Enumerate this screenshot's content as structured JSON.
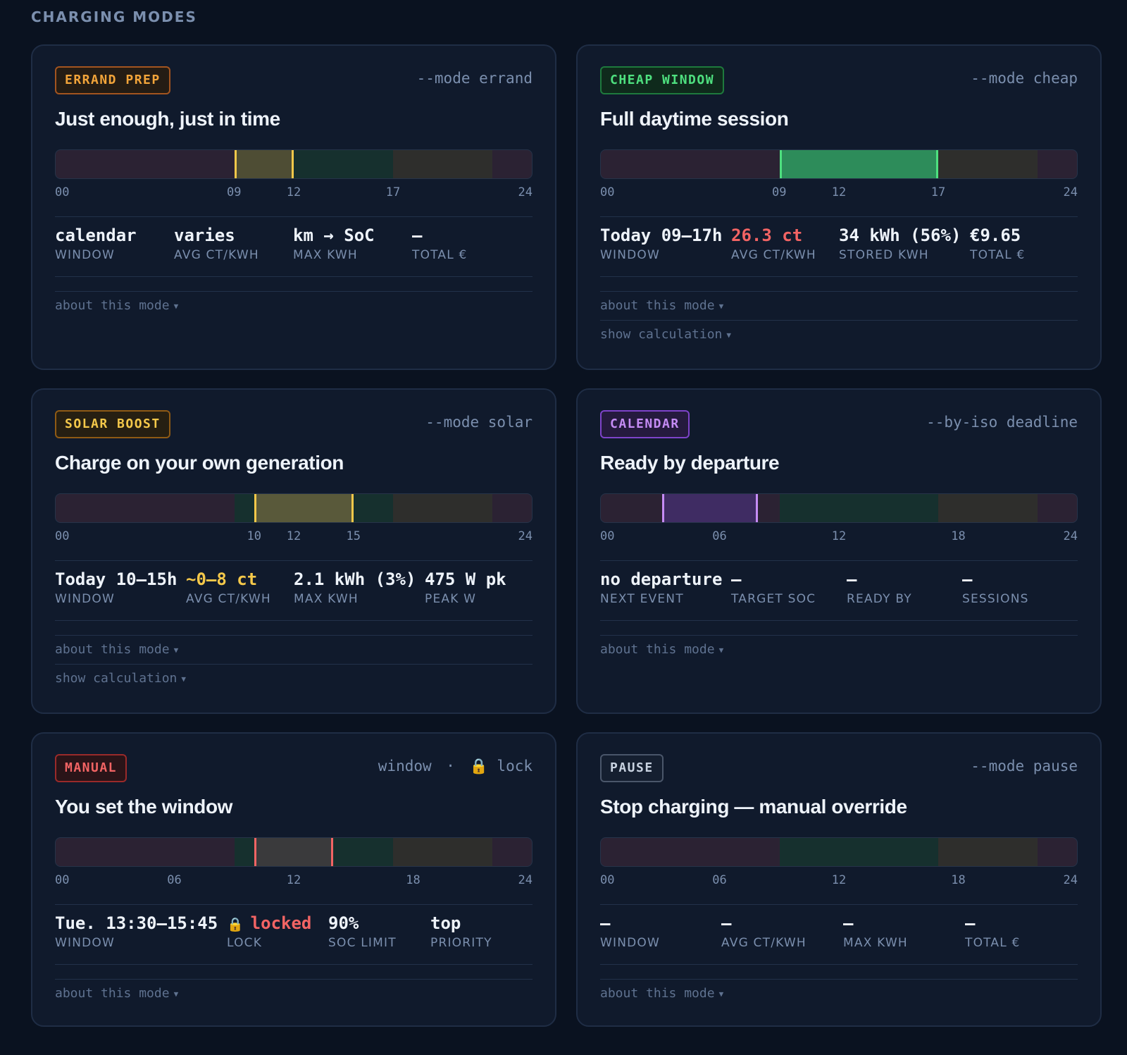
{
  "section_title": "CHARGING MODES",
  "cards": [
    {
      "tag": "ERRAND PREP",
      "cli": "--mode errand",
      "title": "Just enough, just in time",
      "ticks": [
        "00",
        "09",
        "12",
        "17",
        "24"
      ],
      "stats": [
        {
          "value": "calendar",
          "label": "WINDOW"
        },
        {
          "value": "varies",
          "label": "AVG CT/KWH"
        },
        {
          "value": "km → SoC",
          "label": "MAX KWH"
        },
        {
          "value": "—",
          "label": "TOTAL €"
        }
      ],
      "links": [
        "about this mode"
      ]
    },
    {
      "tag": "CHEAP WINDOW",
      "cli": "--mode cheap",
      "title": "Full daytime session",
      "ticks": [
        "00",
        "09",
        "12",
        "17",
        "24"
      ],
      "stats": [
        {
          "value": "Today 09–17h",
          "label": "WINDOW"
        },
        {
          "value": "26.3 ct",
          "label": "AVG CT/KWH"
        },
        {
          "value": "34 kWh (56%)",
          "label": "STORED KWH"
        },
        {
          "value": "€9.65",
          "label": "TOTAL €"
        }
      ],
      "links": [
        "about this mode",
        "show calculation"
      ]
    },
    {
      "tag": "SOLAR BOOST",
      "cli": "--mode solar",
      "title": "Charge on your own generation",
      "ticks": [
        "00",
        "10",
        "12",
        "15",
        "24"
      ],
      "stats": [
        {
          "value": "Today 10–15h",
          "label": "WINDOW"
        },
        {
          "value": "~0–8 ct",
          "label": "AVG CT/KWH"
        },
        {
          "value": "2.1 kWh (3%)",
          "label": "MAX KWH"
        },
        {
          "value": "475 W pk",
          "label": "PEAK W"
        }
      ],
      "links": [
        "about this mode",
        "show calculation"
      ]
    },
    {
      "tag": "CALENDAR",
      "cli": "--by-iso deadline",
      "title": "Ready by departure",
      "ticks": [
        "00",
        "06",
        "12",
        "18",
        "24"
      ],
      "stats": [
        {
          "value": "no departure",
          "label": "NEXT EVENT"
        },
        {
          "value": "—",
          "label": "TARGET SOC"
        },
        {
          "value": "—",
          "label": "READY BY"
        },
        {
          "value": "—",
          "label": "SESSIONS"
        }
      ],
      "links": [
        "about this mode"
      ]
    },
    {
      "tag": "MANUAL",
      "cli_window": "window",
      "cli_dot": "·",
      "cli_lock": "lock",
      "title": "You set the window",
      "ticks": [
        "00",
        "06",
        "12",
        "18",
        "24"
      ],
      "stats": [
        {
          "value": "Tue. 13:30–15:45",
          "label": "WINDOW"
        },
        {
          "value": "locked",
          "label": "LOCK"
        },
        {
          "value": "90%",
          "label": "SOC LIMIT"
        },
        {
          "value": "top",
          "label": "PRIORITY"
        }
      ],
      "links": [
        "about this mode"
      ]
    },
    {
      "tag": "PAUSE",
      "cli": "--mode pause",
      "title": "Stop charging — manual override",
      "ticks": [
        "00",
        "06",
        "12",
        "18",
        "24"
      ],
      "stats": [
        {
          "value": "—",
          "label": "WINDOW"
        },
        {
          "value": "—",
          "label": "AVG CT/KWH"
        },
        {
          "value": "—",
          "label": "MAX KWH"
        },
        {
          "value": "—",
          "label": "TOTAL €"
        }
      ],
      "links": [
        "about this mode"
      ]
    }
  ],
  "colors": {
    "background": "#0a1220",
    "card": "#101a2c",
    "errand": "#f2a43a",
    "cheap": "#4ee07f",
    "solar": "#f4c84a",
    "calendar": "#c58cf5",
    "manual": "#f26464",
    "pause": "#c8d2e0"
  },
  "icons": {
    "lock": "lock-icon",
    "caret": "caret-down-icon"
  }
}
